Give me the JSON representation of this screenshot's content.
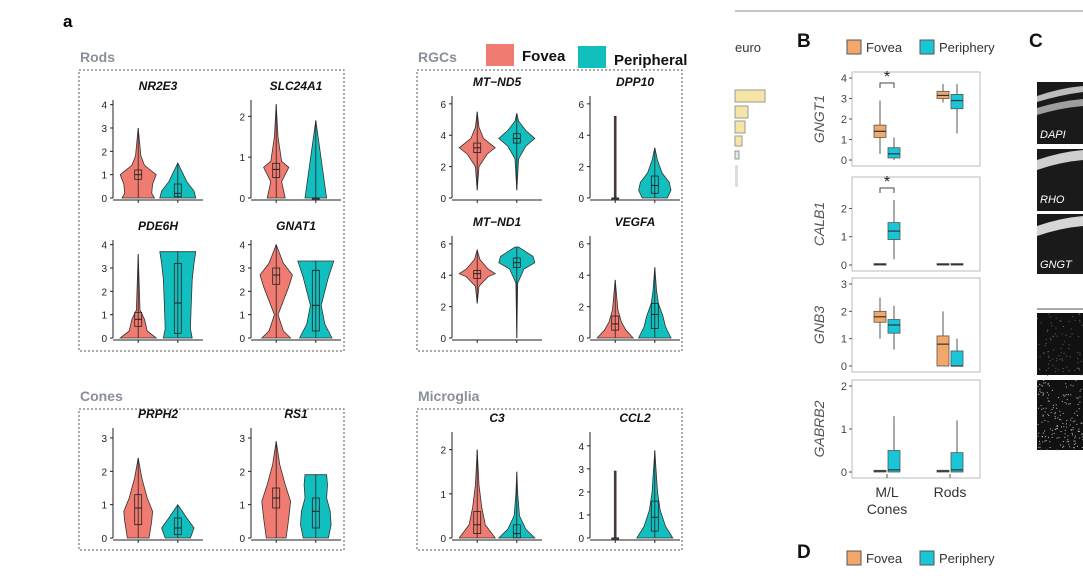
{
  "figure": {
    "panel_a": "a",
    "panel_B": "B",
    "panel_C": "C",
    "panel_D": "D",
    "legend_a": {
      "fovea": "Fovea",
      "peripheral": "Peripheral"
    },
    "legend_b": {
      "fovea": "Fovea",
      "periphery": "Periphery"
    },
    "legend_d": {
      "fovea": "Fovea",
      "periphery": "Periphery"
    },
    "crop_text": "euro",
    "image_labels": [
      "DAPI",
      "RHO",
      "GNGT"
    ],
    "colors": {
      "fovea": "#f07b70",
      "peripheral": "#12bfbf",
      "fovea_box": "#f2a86b",
      "periphery_box": "#19c6d8",
      "crop_bar": "#f5e6a8"
    }
  },
  "chart_data": [
    {
      "type": "violin",
      "group": "Rods",
      "title": "NR2E3",
      "ylim": [
        0,
        4.2
      ],
      "yticks": [
        "0",
        "1",
        "2",
        "3",
        "4"
      ],
      "series": [
        {
          "name": "Fovea",
          "median": 1.0,
          "q1": 0.8,
          "q3": 1.2,
          "min": 0,
          "max": 3.0
        },
        {
          "name": "Peripheral",
          "median": 0.2,
          "q1": 0.05,
          "q3": 0.6,
          "min": 0,
          "max": 1.5
        }
      ]
    },
    {
      "type": "violin",
      "group": "Rods",
      "title": "SLC24A1",
      "ylim": [
        0,
        2.4
      ],
      "yticks": [
        "0",
        "1",
        "2"
      ],
      "series": [
        {
          "name": "Fovea",
          "median": 0.7,
          "q1": 0.5,
          "q3": 0.85,
          "min": 0,
          "max": 2.3
        },
        {
          "name": "Peripheral",
          "median": 0,
          "q1": 0,
          "q3": 0,
          "min": 0,
          "max": 1.9
        }
      ]
    },
    {
      "type": "violin",
      "group": "Rods",
      "title": "PDE6H",
      "ylim": [
        0,
        4.2
      ],
      "yticks": [
        "0",
        "1",
        "2",
        "3",
        "4"
      ],
      "series": [
        {
          "name": "Fovea",
          "median": 0.8,
          "q1": 0.5,
          "q3": 1.1,
          "min": 0,
          "max": 3.6
        },
        {
          "name": "Peripheral",
          "median": 1.5,
          "q1": 0.2,
          "q3": 3.2,
          "min": 0,
          "max": 3.7
        }
      ]
    },
    {
      "type": "violin",
      "group": "Rods",
      "title": "GNAT1",
      "ylim": [
        0,
        4.2
      ],
      "yticks": [
        "0",
        "1",
        "2",
        "3",
        "4"
      ],
      "series": [
        {
          "name": "Fovea",
          "median": 2.7,
          "q1": 2.3,
          "q3": 3.0,
          "min": 0,
          "max": 4.0
        },
        {
          "name": "Peripheral",
          "median": 1.4,
          "q1": 0.3,
          "q3": 2.9,
          "min": 0,
          "max": 3.3
        }
      ]
    },
    {
      "type": "violin",
      "group": "RGCs",
      "title": "MT−ND5",
      "ylim": [
        0,
        6.5
      ],
      "yticks": [
        "0",
        "2",
        "4",
        "6"
      ],
      "series": [
        {
          "name": "Fovea",
          "median": 3.2,
          "q1": 2.9,
          "q3": 3.5,
          "min": 0.5,
          "max": 5.5
        },
        {
          "name": "Peripheral",
          "median": 3.8,
          "q1": 3.5,
          "q3": 4.1,
          "min": 0.5,
          "max": 5.4
        }
      ]
    },
    {
      "type": "violin",
      "group": "RGCs",
      "title": "DPP10",
      "ylim": [
        0,
        6.5
      ],
      "yticks": [
        "0",
        "2",
        "4",
        "6"
      ],
      "series": [
        {
          "name": "Fovea",
          "median": 0,
          "q1": 0,
          "q3": 0,
          "min": 0,
          "max": 5.2
        },
        {
          "name": "Peripheral",
          "median": 0.8,
          "q1": 0.3,
          "q3": 1.4,
          "min": 0,
          "max": 3.2
        }
      ]
    },
    {
      "type": "violin",
      "group": "RGCs",
      "title": "MT−ND1",
      "ylim": [
        0,
        6.5
      ],
      "yticks": [
        "0",
        "2",
        "4",
        "6"
      ],
      "series": [
        {
          "name": "Fovea",
          "median": 4.1,
          "q1": 3.8,
          "q3": 4.3,
          "min": 2.2,
          "max": 5.6
        },
        {
          "name": "Peripheral",
          "median": 4.8,
          "q1": 4.5,
          "q3": 5.1,
          "min": 0,
          "max": 5.8
        }
      ]
    },
    {
      "type": "violin",
      "group": "RGCs",
      "title": "VEGFA",
      "ylim": [
        0,
        6.5
      ],
      "yticks": [
        "0",
        "2",
        "4",
        "6"
      ],
      "series": [
        {
          "name": "Fovea",
          "median": 0.9,
          "q1": 0.5,
          "q3": 1.4,
          "min": 0,
          "max": 3.7
        },
        {
          "name": "Peripheral",
          "median": 1.5,
          "q1": 0.6,
          "q3": 2.2,
          "min": 0,
          "max": 4.5
        }
      ]
    },
    {
      "type": "violin",
      "group": "Cones",
      "title": "PRPH2",
      "ylim": [
        0,
        3.3
      ],
      "yticks": [
        "0",
        "1",
        "2",
        "3"
      ],
      "series": [
        {
          "name": "Fovea",
          "median": 0.9,
          "q1": 0.4,
          "q3": 1.3,
          "min": 0,
          "max": 2.4
        },
        {
          "name": "Peripheral",
          "median": 0.3,
          "q1": 0.1,
          "q3": 0.6,
          "min": 0,
          "max": 1.0
        }
      ]
    },
    {
      "type": "violin",
      "group": "Cones",
      "title": "RS1",
      "ylim": [
        0,
        3.3
      ],
      "yticks": [
        "0",
        "1",
        "2",
        "3"
      ],
      "series": [
        {
          "name": "Fovea",
          "median": 1.2,
          "q1": 0.9,
          "q3": 1.5,
          "min": 0,
          "max": 2.9
        },
        {
          "name": "Peripheral",
          "median": 0.8,
          "q1": 0.3,
          "q3": 1.2,
          "min": 0,
          "max": 1.9
        }
      ]
    },
    {
      "type": "violin",
      "group": "Microglia",
      "title": "C3",
      "ylim": [
        0,
        2.4
      ],
      "yticks": [
        "0",
        "1",
        "2"
      ],
      "series": [
        {
          "name": "Fovea",
          "median": 0.3,
          "q1": 0.1,
          "q3": 0.6,
          "min": 0,
          "max": 2.0
        },
        {
          "name": "Peripheral",
          "median": 0.1,
          "q1": 0,
          "q3": 0.3,
          "min": 0,
          "max": 1.5
        }
      ]
    },
    {
      "type": "violin",
      "group": "Microglia",
      "title": "CCL2",
      "ylim": [
        0,
        4.6
      ],
      "yticks": [
        "0",
        "1",
        "2",
        "3",
        "4"
      ],
      "series": [
        {
          "name": "Fovea",
          "median": 0,
          "q1": 0,
          "q3": 0,
          "min": 0,
          "max": 2.9
        },
        {
          "name": "Peripheral",
          "median": 0.9,
          "q1": 0.3,
          "q3": 1.6,
          "min": 0,
          "max": 3.8
        }
      ]
    },
    {
      "type": "box",
      "panel": "B",
      "ylabel": "GNGT1",
      "categories": [
        "M/L Cones",
        "Rods"
      ],
      "ylim": [
        0,
        4
      ],
      "yticks": [
        "0",
        "1",
        "2",
        "3",
        "4"
      ],
      "annotation": "*",
      "series": [
        {
          "name": "Fovea",
          "boxes": [
            {
              "min": 0.3,
              "q1": 1.1,
              "median": 1.4,
              "q3": 1.7,
              "max": 2.9
            },
            {
              "min": 2.8,
              "q1": 3.0,
              "median": 3.15,
              "q3": 3.35,
              "max": 3.7
            }
          ]
        },
        {
          "name": "Periphery",
          "boxes": [
            {
              "min": 0,
              "q1": 0.1,
              "median": 0.3,
              "q3": 0.6,
              "max": 1.1
            },
            {
              "min": 1.3,
              "q1": 2.5,
              "median": 2.9,
              "q3": 3.2,
              "max": 3.7
            }
          ]
        }
      ]
    },
    {
      "type": "box",
      "panel": "B",
      "ylabel": "CALB1",
      "categories": [
        "M/L Cones",
        "Rods"
      ],
      "ylim": [
        0,
        2.9
      ],
      "yticks": [
        "0",
        "1",
        "2"
      ],
      "annotation": "*",
      "series": [
        {
          "name": "Fovea",
          "boxes": [
            {
              "min": 0,
              "q1": 0,
              "median": 0.02,
              "q3": 0.05,
              "max": 0.05
            },
            {
              "min": 0,
              "q1": 0,
              "median": 0.02,
              "q3": 0.05,
              "max": 0.05
            }
          ]
        },
        {
          "name": "Periphery",
          "boxes": [
            {
              "min": 0.2,
              "q1": 0.9,
              "median": 1.2,
              "q3": 1.5,
              "max": 2.3
            },
            {
              "min": 0,
              "q1": 0,
              "median": 0.02,
              "q3": 0.05,
              "max": 0.05
            }
          ]
        }
      ]
    },
    {
      "type": "box",
      "panel": "B",
      "ylabel": "GNB3",
      "categories": [
        "M/L Cones",
        "Rods"
      ],
      "ylim": [
        0,
        3
      ],
      "yticks": [
        "0",
        "1",
        "2",
        "3"
      ],
      "series": [
        {
          "name": "Fovea",
          "boxes": [
            {
              "min": 1.0,
              "q1": 1.6,
              "median": 1.8,
              "q3": 2.0,
              "max": 2.5
            },
            {
              "min": 0,
              "q1": 0,
              "median": 0.8,
              "q3": 1.1,
              "max": 2.0
            }
          ]
        },
        {
          "name": "Periphery",
          "boxes": [
            {
              "min": 0.6,
              "q1": 1.2,
              "median": 1.5,
              "q3": 1.7,
              "max": 2.2
            },
            {
              "min": 0,
              "q1": 0,
              "median": 0,
              "q3": 0.55,
              "max": 1.0
            }
          ]
        }
      ]
    },
    {
      "type": "box",
      "panel": "B",
      "ylabel": "GABRB2",
      "categories": [
        "M/L Cones",
        "Rods"
      ],
      "ylim": [
        0,
        2
      ],
      "yticks": [
        "0",
        "1",
        "2"
      ],
      "series": [
        {
          "name": "Fovea",
          "boxes": [
            {
              "min": 0,
              "q1": 0,
              "median": 0.02,
              "q3": 0.04,
              "max": 0.04
            },
            {
              "min": 0,
              "q1": 0,
              "median": 0.02,
              "q3": 0.04,
              "max": 0.04
            }
          ]
        },
        {
          "name": "Periphery",
          "boxes": [
            {
              "min": 0,
              "q1": 0,
              "median": 0.05,
              "q3": 0.5,
              "max": 1.3
            },
            {
              "min": 0,
              "q1": 0,
              "median": 0.05,
              "q3": 0.45,
              "max": 1.2
            }
          ]
        }
      ]
    }
  ]
}
